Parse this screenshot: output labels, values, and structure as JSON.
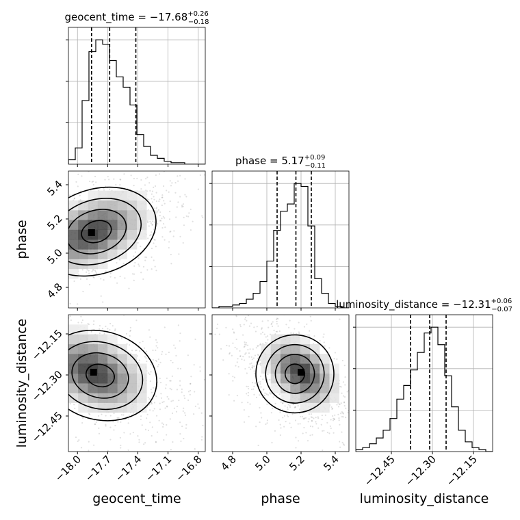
{
  "chart_data": {
    "type": "corner",
    "grid": true,
    "parameters": [
      "geocent_time",
      "phase",
      "luminosity_distance"
    ],
    "titles": {
      "geocent_time": {
        "name": "geocent_time",
        "median": "−17.68",
        "plus": "+0.26",
        "minus": "−0.18"
      },
      "phase": {
        "name": "phase",
        "median": "5.17",
        "plus": "+0.09",
        "minus": "−0.11"
      },
      "luminosity_distance": {
        "name": "luminosity_distance",
        "median": "−12.31",
        "plus": "+0.06",
        "minus": "−0.07"
      }
    },
    "axis_labels": {
      "geocent_time": "geocent_time",
      "phase": "phase",
      "luminosity_distance": "luminosity_distance"
    },
    "ranges": {
      "geocent_time": [
        -18.09,
        -16.73
      ],
      "phase": [
        4.68,
        5.48
      ],
      "luminosity_distance": [
        -12.58,
        -12.08
      ]
    },
    "ticks": {
      "geocent_time": {
        "values": [
          -18.0,
          -17.7,
          -17.4,
          -17.1,
          -16.8
        ],
        "labels": [
          "−18.0",
          "−17.7",
          "−17.4",
          "−17.1",
          "−16.8"
        ]
      },
      "phase": {
        "values": [
          4.8,
          5.0,
          5.2,
          5.4
        ],
        "labels": [
          "4.8",
          "5.0",
          "5.2",
          "5.4"
        ]
      },
      "luminosity_distance": {
        "values": [
          -12.45,
          -12.3,
          -12.15
        ],
        "labels": [
          "−12.45",
          "−12.30",
          "−12.15"
        ]
      }
    },
    "quantiles": {
      "geocent_time": [
        -17.86,
        -17.68,
        -17.42
      ],
      "phase": [
        5.06,
        5.17,
        5.26
      ],
      "luminosity_distance": [
        -12.38,
        -12.31,
        -12.25
      ]
    },
    "histograms": {
      "geocent_time": {
        "edges": [
          -18.09,
          -18.022,
          -17.954,
          -17.886,
          -17.818,
          -17.75,
          -17.682,
          -17.614,
          -17.546,
          -17.478,
          -17.41,
          -17.342,
          -17.274,
          -17.206,
          -17.138,
          -17.07,
          -17.002,
          -16.934,
          -16.866,
          -16.798,
          -16.73
        ],
        "counts": [
          3,
          11,
          43,
          76,
          84,
          81,
          70,
          59,
          52,
          40,
          20,
          12,
          6,
          4,
          2,
          1,
          1,
          0,
          0,
          0
        ]
      },
      "phase": {
        "edges": [
          4.68,
          4.72,
          4.76,
          4.8,
          4.84,
          4.88,
          4.92,
          4.96,
          5.0,
          5.04,
          5.08,
          5.12,
          5.16,
          5.2,
          5.24,
          5.28,
          5.32,
          5.36,
          5.4,
          5.44,
          5.48
        ],
        "counts": [
          0,
          1,
          1,
          2,
          3,
          6,
          10,
          18,
          32,
          53,
          66,
          71,
          85,
          83,
          56,
          20,
          10,
          3,
          1,
          0
        ]
      },
      "luminosity_distance": {
        "edges": [
          -12.58,
          -12.555,
          -12.53,
          -12.505,
          -12.48,
          -12.455,
          -12.43,
          -12.405,
          -12.38,
          -12.355,
          -12.33,
          -12.305,
          -12.28,
          -12.255,
          -12.23,
          -12.205,
          -12.18,
          -12.155,
          -12.13,
          -12.105,
          -12.08
        ],
        "counts": [
          1,
          2,
          4,
          7,
          11,
          17,
          27,
          34,
          42,
          51,
          61,
          64,
          55,
          39,
          23,
          11,
          5,
          2,
          1,
          0
        ]
      }
    },
    "density_2d": [
      {
        "x": "geocent_time",
        "y": "phase",
        "center": [
          -17.78,
          5.13
        ],
        "spread": [
          0.32,
          0.13
        ],
        "correlation": 0.45,
        "peak": [
          -17.86,
          5.12
        ],
        "contour_levels": [
          "0.5",
          "1.0",
          "1.5",
          "2.0"
        ]
      },
      {
        "x": "geocent_time",
        "y": "luminosity_distance",
        "center": [
          -17.73,
          -12.31
        ],
        "spread": [
          0.3,
          0.085
        ],
        "correlation": -0.38,
        "peak": [
          -17.84,
          -12.29
        ],
        "contour_levels": [
          "0.5",
          "1.0",
          "1.5",
          "2.0"
        ]
      },
      {
        "x": "phase",
        "y": "luminosity_distance",
        "center": [
          5.14,
          -12.3
        ],
        "spread": [
          0.12,
          0.075
        ],
        "correlation": -0.42,
        "peak": [
          5.2,
          -12.29
        ],
        "contour_levels": [
          "0.5",
          "1.0",
          "1.5",
          "2.0"
        ]
      }
    ]
  }
}
